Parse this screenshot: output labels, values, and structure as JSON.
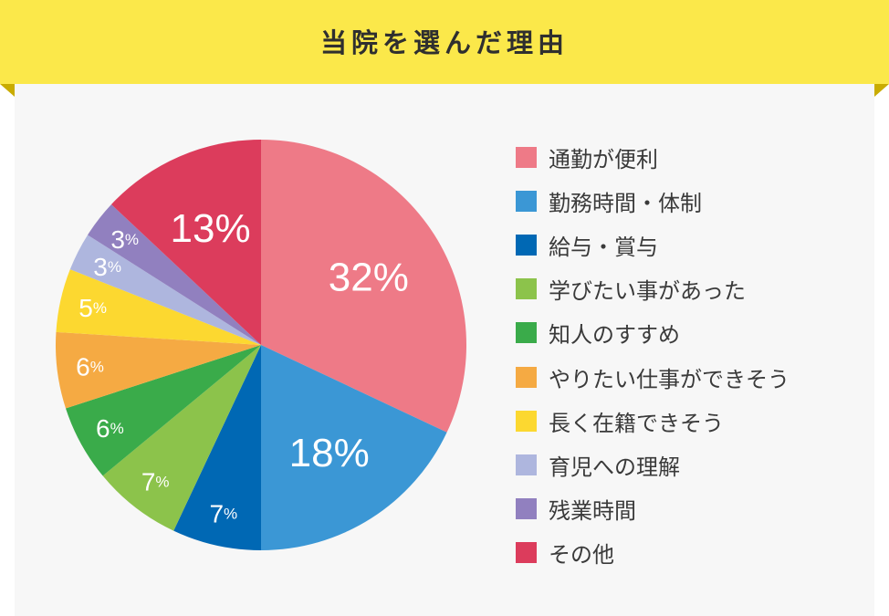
{
  "header": {
    "title": "当院を選んだ理由"
  },
  "chart_data": {
    "type": "pie",
    "title": "当院を選んだ理由",
    "unit": "%",
    "categories": [
      "通勤が便利",
      "勤務時間・体制",
      "給与・賞与",
      "学びたい事があった",
      "知人のすすめ",
      "やりたい仕事ができそう",
      "長く在籍できそう",
      "育児への理解",
      "残業時間",
      "その他"
    ],
    "values": [
      32,
      18,
      7,
      7,
      6,
      6,
      5,
      3,
      3,
      13
    ],
    "labels": [
      "32%",
      "18%",
      "7%",
      "7%",
      "6%",
      "6%",
      "5%",
      "3%",
      "3%",
      "13%"
    ],
    "colors": [
      "#ee7a87",
      "#3b97d5",
      "#0068b4",
      "#8cc34b",
      "#3aab4a",
      "#f5aa43",
      "#fcd830",
      "#aeb6de",
      "#9180bf",
      "#dc3c5c"
    ],
    "legend_position": "right",
    "start": "12 o'clock, clockwise"
  }
}
